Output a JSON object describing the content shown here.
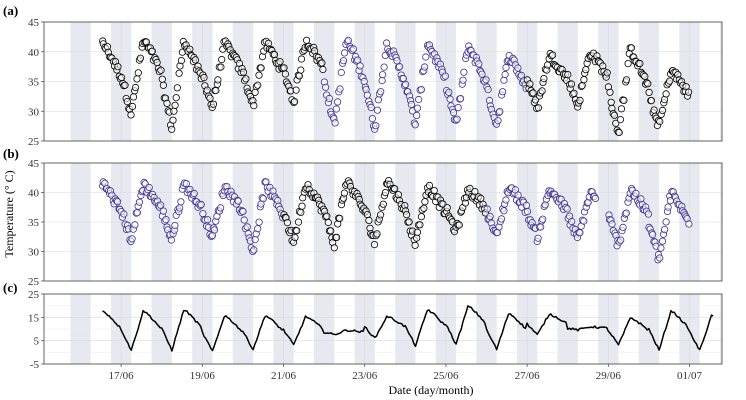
{
  "chart_data": [
    {
      "panel": "(a)",
      "type": "scatter",
      "ylim": [
        25,
        45
      ],
      "yticks": [
        25,
        30,
        35,
        40,
        45
      ],
      "series_note": "points alternate between two groups (black and purple outline) by block of days",
      "series": [
        {
          "name": "group-black",
          "color": "#000000",
          "days": [
            16,
            17,
            18,
            19,
            20,
            21,
            27,
            28,
            29,
            30
          ]
        },
        {
          "name": "group-purple",
          "color": "#3b2f8f",
          "days": [
            22,
            23,
            24,
            25,
            26
          ]
        }
      ],
      "daily_min": {
        "16": 29,
        "17": 29,
        "18": 26.5,
        "19": 30,
        "20": 30.5,
        "21": 31,
        "22": 27,
        "23": 26.5,
        "24": 27,
        "25": 27,
        "26": 27,
        "27": 30,
        "28": 30.5,
        "29": 25.5,
        "30": 27
      },
      "daily_max": {
        "16": 41.5,
        "17": 42,
        "18": 42,
        "19": 41.5,
        "20": 41.5,
        "21": 42,
        "22": 42,
        "23": 41.5,
        "24": 41.5,
        "25": 41,
        "26": 39.5,
        "27": 39.5,
        "28": 40,
        "29": 40.5,
        "30": 37
      }
    },
    {
      "panel": "(b)",
      "type": "scatter",
      "ylim": [
        25,
        45
      ],
      "yticks": [
        25,
        30,
        35,
        40,
        45
      ],
      "series": [
        {
          "name": "group-purple",
          "color": "#3b2f8f",
          "days": [
            16,
            17,
            18,
            19,
            20,
            26,
            27,
            28,
            29,
            30
          ]
        },
        {
          "name": "group-black",
          "color": "#000000",
          "days": [
            21,
            22,
            23,
            24,
            25
          ]
        }
      ],
      "daily_min": {
        "16": 31,
        "17": 31.5,
        "18": 31.5,
        "19": 32,
        "20": 29.5,
        "21": 31,
        "22": 30.5,
        "23": 31,
        "24": 31,
        "25": 33,
        "26": 32,
        "27": 32,
        "28": 31.5,
        "29": 30.5,
        "30": 28
      },
      "daily_max": {
        "16": 41.5,
        "17": 41.5,
        "18": 41.5,
        "19": 41,
        "20": 41.5,
        "21": 41.5,
        "22": 42,
        "23": 42,
        "24": 41,
        "25": 40.5,
        "26": 41,
        "27": 40.5,
        "28": 40,
        "29": 40.5,
        "30": 40
      }
    },
    {
      "panel": "(c)",
      "type": "line",
      "ylim": [
        -5,
        25
      ],
      "yticks": [
        -5,
        5,
        15,
        25
      ],
      "color": "#000000",
      "daily_min": {
        "16": 0.5,
        "17": 0,
        "18": 0,
        "19": -0.5,
        "20": 0.5,
        "21": 2.5,
        "22": 7.5,
        "23": 5.5,
        "24": 2,
        "25": 2.5,
        "26": 0.5,
        "27": 7,
        "28": 9.5,
        "29": 2.5,
        "30": 0,
        "31": 0
      },
      "daily_max": {
        "16": 18,
        "17": 18,
        "18": 18.5,
        "19": 16,
        "20": 16,
        "21": 15.5,
        "22": 9.5,
        "23": 15.5,
        "24": 18.5,
        "25": 20,
        "26": 17,
        "27": 16.5,
        "28": 11,
        "29": 15,
        "30": 18,
        "31": 16
      }
    }
  ],
  "x_axis": {
    "tick_labels": [
      "17/06",
      "19/06",
      "21/06",
      "23/06",
      "25/06",
      "27/06",
      "29/06",
      "01/07"
    ],
    "tick_days": [
      17,
      19,
      21,
      23,
      25,
      27,
      29,
      31
    ],
    "xlim_days": [
      15.1,
      31.8
    ],
    "night_band_hours": [
      18,
      6
    ]
  },
  "labels": {
    "panel_a": "(a)",
    "panel_b": "(b)",
    "panel_c": "(c)",
    "xlabel": "Date (day/month)",
    "ylabel": "Temperature (° C)"
  },
  "colors": {
    "black": "#000000",
    "purple": "#3b2f8f",
    "band": "#e6e9ef",
    "grid": "#d9d9d9",
    "frame": "#555555"
  }
}
